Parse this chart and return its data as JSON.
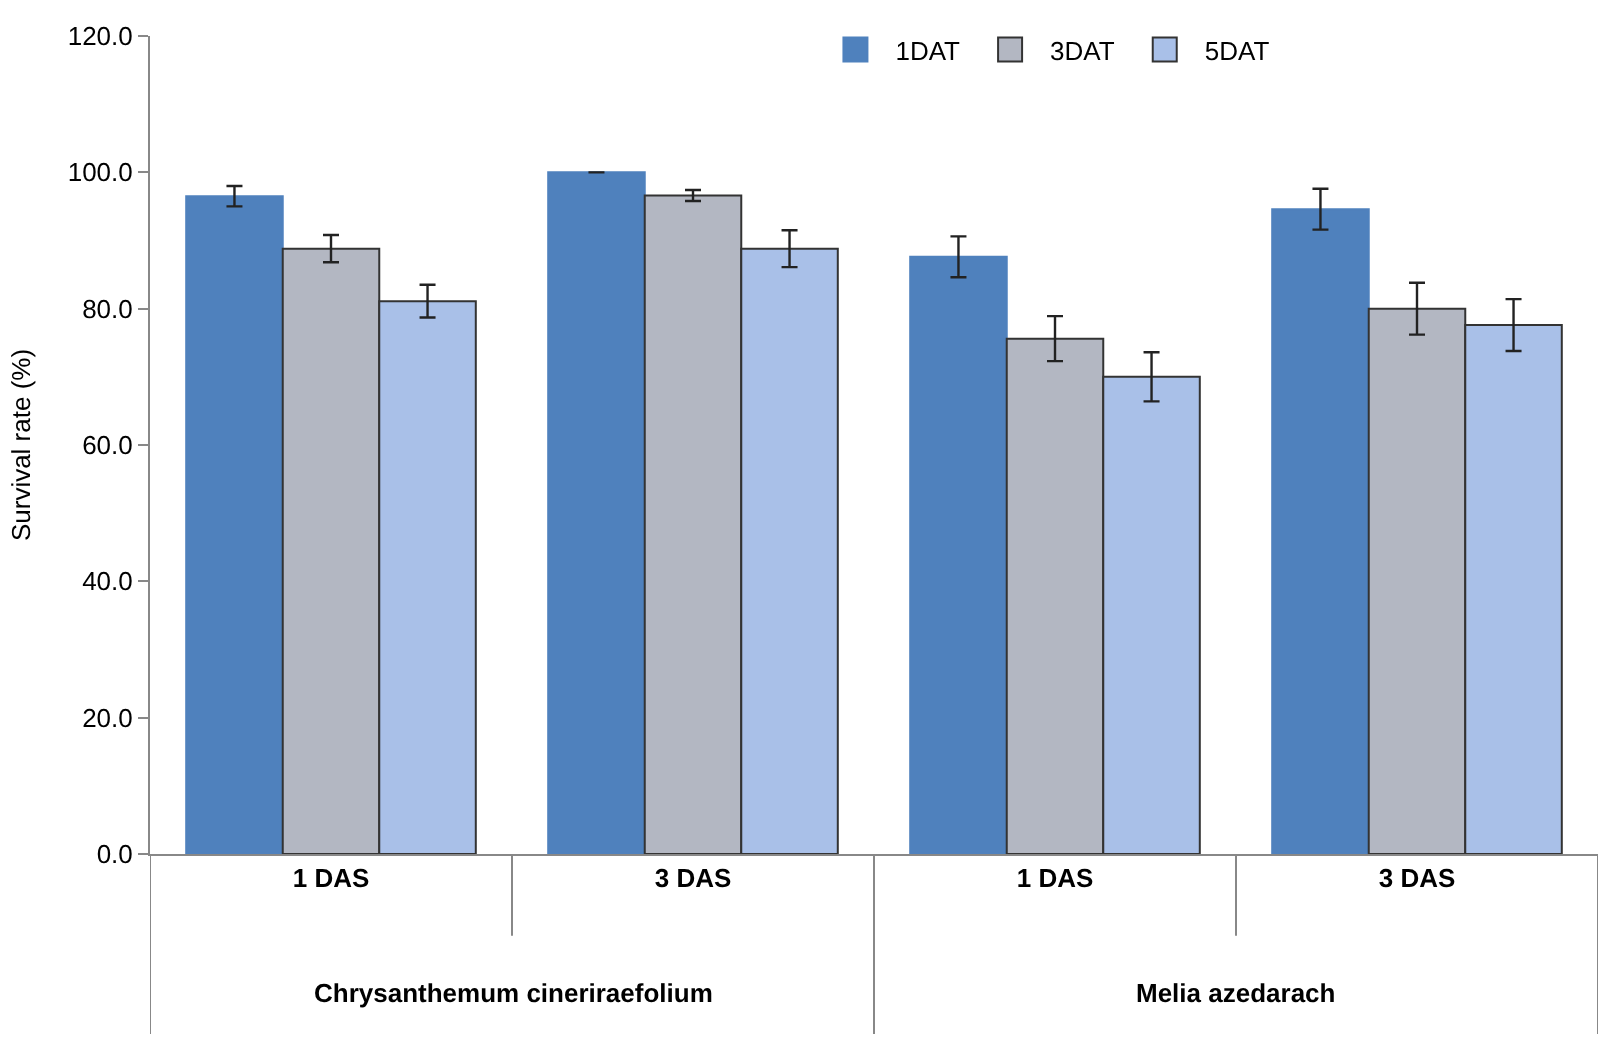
{
  "chart_data": {
    "type": "bar",
    "ylabel": "Survival rate (%)",
    "categories": [
      "1 DAS",
      "3 DAS",
      "1 DAS",
      "3 DAS"
    ],
    "annotations": [
      "Chrysanthemum cineriraefolium",
      "Melia azedarach"
    ],
    "series": [
      {
        "name": "1DAT",
        "color": "#4f81bd",
        "values": [
          96.5,
          100.0,
          87.6,
          94.6
        ],
        "errors": [
          1.5,
          0,
          3.0,
          3.0
        ]
      },
      {
        "name": "3DAT",
        "color": "#b3b7c2",
        "values": [
          88.8,
          96.6,
          75.6,
          80.0
        ],
        "errors": [
          2.0,
          0.8,
          3.3,
          3.8
        ]
      },
      {
        "name": "5DAT",
        "color": "#a9c0e8",
        "values": [
          81.1,
          88.8,
          70.0,
          77.6
        ],
        "errors": [
          2.4,
          2.7,
          3.6,
          3.8
        ]
      }
    ],
    "ylim": [
      0,
      120
    ],
    "yticks": [
      {
        "value": 0,
        "label": "0.0"
      },
      {
        "value": 20,
        "label": "20.0"
      },
      {
        "value": 40,
        "label": "40.0"
      },
      {
        "value": 60,
        "label": "60.0"
      },
      {
        "value": 80,
        "label": "80.0"
      },
      {
        "value": 100,
        "label": "100.0"
      },
      {
        "value": 120,
        "label": "120.0"
      }
    ],
    "grid": false,
    "legend": "top right"
  }
}
